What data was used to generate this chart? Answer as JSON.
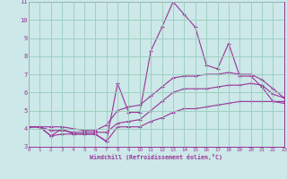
{
  "xlabel": "Windchill (Refroidissement éolien,°C)",
  "background_color": "#cce8e8",
  "grid_color": "#99ccbb",
  "line_color": "#993399",
  "x_hours": [
    0,
    1,
    2,
    3,
    4,
    5,
    6,
    7,
    8,
    9,
    10,
    11,
    12,
    13,
    14,
    15,
    16,
    17,
    18,
    19,
    20,
    21,
    22,
    23
  ],
  "y_temp": [
    4.1,
    4.1,
    3.6,
    4.0,
    3.7,
    3.7,
    3.7,
    3.3,
    6.5,
    4.9,
    4.9,
    8.3,
    9.6,
    11.0,
    10.3,
    9.6,
    7.5,
    7.3,
    8.7,
    6.9,
    6.9,
    6.3,
    5.5,
    5.4
  ],
  "y_min": [
    4.1,
    4.1,
    3.6,
    3.7,
    3.7,
    3.7,
    3.7,
    3.3,
    4.1,
    4.1,
    4.1,
    4.4,
    4.6,
    4.9,
    5.1,
    5.1,
    5.2,
    5.3,
    5.4,
    5.5,
    5.5,
    5.5,
    5.5,
    5.5
  ],
  "y_avg": [
    4.1,
    4.1,
    3.9,
    3.9,
    3.8,
    3.8,
    3.8,
    3.8,
    4.3,
    4.4,
    4.5,
    5.0,
    5.5,
    6.0,
    6.2,
    6.2,
    6.2,
    6.3,
    6.4,
    6.4,
    6.5,
    6.4,
    5.9,
    5.7
  ],
  "y_max": [
    4.1,
    4.1,
    4.1,
    4.1,
    4.0,
    3.9,
    3.9,
    4.2,
    5.0,
    5.2,
    5.3,
    5.8,
    6.3,
    6.8,
    6.9,
    6.9,
    7.0,
    7.0,
    7.1,
    7.0,
    7.0,
    6.7,
    6.2,
    5.7
  ],
  "ylim": [
    3,
    11
  ],
  "xlim": [
    0,
    23
  ],
  "yticks": [
    3,
    4,
    5,
    6,
    7,
    8,
    9,
    10,
    11
  ],
  "xticks": [
    0,
    1,
    2,
    3,
    4,
    5,
    6,
    7,
    8,
    9,
    10,
    11,
    12,
    13,
    14,
    15,
    16,
    17,
    18,
    19,
    20,
    21,
    22,
    23
  ]
}
